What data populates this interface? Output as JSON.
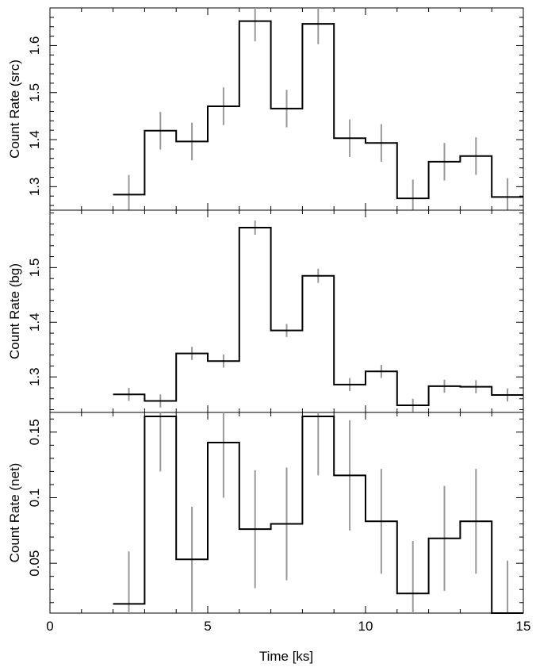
{
  "chart_data": [
    {
      "type": "line",
      "style": "step",
      "ylabel": "Count Rate (src)",
      "xlim": [
        0,
        15
      ],
      "ylim": [
        1.25,
        1.68
      ],
      "yticks": [
        1.3,
        1.4,
        1.5,
        1.6
      ],
      "ytick_labels": [
        "1.3",
        "1.4",
        "1.5",
        "1.6"
      ],
      "x": [
        2.5,
        3.5,
        4.5,
        5.5,
        6.5,
        7.5,
        8.5,
        9.5,
        10.5,
        11.5,
        12.5,
        13.5,
        14.5
      ],
      "bin_edges": [
        2,
        3,
        4,
        5,
        6,
        7,
        8,
        9,
        10,
        11,
        12,
        13,
        14,
        15
      ],
      "values": [
        1.283,
        1.419,
        1.396,
        1.471,
        1.652,
        1.466,
        1.646,
        1.403,
        1.393,
        1.275,
        1.353,
        1.365,
        1.278
      ],
      "errors": [
        0.042,
        0.04,
        0.04,
        0.04,
        0.043,
        0.04,
        0.043,
        0.04,
        0.04,
        0.04,
        0.04,
        0.04,
        0.04
      ],
      "line_color": "#000000",
      "error_color": "#999999"
    },
    {
      "type": "line",
      "style": "step",
      "ylabel": "Count Rate (bg)",
      "xlim": [
        0,
        15
      ],
      "ylim": [
        1.235,
        1.605
      ],
      "yticks": [
        1.3,
        1.4,
        1.5
      ],
      "ytick_labels": [
        "1.3",
        "1.4",
        "1.5"
      ],
      "x": [
        2.5,
        3.5,
        4.5,
        5.5,
        6.5,
        7.5,
        8.5,
        9.5,
        10.5,
        11.5,
        12.5,
        13.5,
        14.5
      ],
      "bin_edges": [
        2,
        3,
        4,
        5,
        6,
        7,
        8,
        9,
        10,
        11,
        12,
        13,
        14,
        15
      ],
      "values": [
        1.268,
        1.256,
        1.343,
        1.329,
        1.573,
        1.385,
        1.485,
        1.286,
        1.31,
        1.248,
        1.283,
        1.282,
        1.267
      ],
      "errors": [
        0.012,
        0.012,
        0.012,
        0.012,
        0.013,
        0.012,
        0.013,
        0.012,
        0.012,
        0.012,
        0.012,
        0.012,
        0.012
      ],
      "line_color": "#000000",
      "error_color": "#999999"
    },
    {
      "type": "line",
      "style": "step",
      "xlabel": "Time [ks]",
      "ylabel": "Count Rate (net)",
      "xlim": [
        0,
        15
      ],
      "ylim": [
        0.012,
        0.165
      ],
      "yticks": [
        0.05,
        0.1,
        0.15
      ],
      "ytick_labels": [
        "0.05",
        "0.1",
        "0.15"
      ],
      "xticks": [
        0,
        5,
        10,
        15
      ],
      "xtick_labels": [
        "0",
        "5",
        "10",
        "15"
      ],
      "x": [
        2.5,
        3.5,
        4.5,
        5.5,
        6.5,
        7.5,
        8.5,
        9.5,
        10.5,
        11.5,
        12.5,
        13.5,
        14.5
      ],
      "bin_edges": [
        2,
        3,
        4,
        5,
        6,
        7,
        8,
        9,
        10,
        11,
        12,
        13,
        14,
        15
      ],
      "values": [
        0.019,
        0.162,
        0.053,
        0.142,
        0.076,
        0.08,
        0.162,
        0.117,
        0.082,
        0.027,
        0.069,
        0.082,
        0.012
      ],
      "errors": [
        0.04,
        0.042,
        0.04,
        0.042,
        0.045,
        0.043,
        0.045,
        0.042,
        0.04,
        0.04,
        0.04,
        0.04,
        0.04
      ],
      "line_color": "#000000",
      "error_color": "#999999"
    }
  ]
}
